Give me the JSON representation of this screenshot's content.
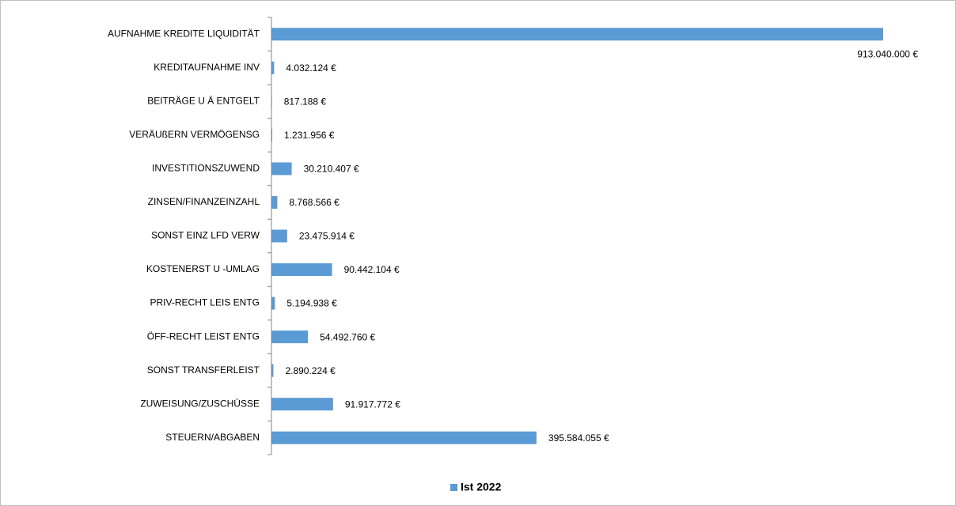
{
  "chart_data": {
    "type": "bar",
    "orientation": "horizontal",
    "categories": [
      "AUFNAHME KREDITE LIQUIDITÄT",
      "KREDITAUFNAHME INV",
      "BEITRÄGE U Ä ENTGELT",
      "VERÄUßERN VERMÖGENSG",
      "INVESTITIONSZUWEND",
      "ZINSEN/FINANZEINZAHL",
      "SONST EINZ LFD VERW",
      "KOSTENERST U -UMLAG",
      "PRIV-RECHT LEIS ENTG",
      "ÖFF-RECHT LEIST ENTG",
      "SONST TRANSFERLEIST",
      "ZUWEISUNG/ZUSCHÜSSE",
      "STEUERN/ABGABEN"
    ],
    "series": [
      {
        "name": "Ist 2022",
        "color": "#5b9bd5",
        "values": [
          913040000,
          4032124,
          817188,
          1231956,
          30210407,
          8768566,
          23475914,
          90442104,
          5194938,
          54492760,
          2890224,
          91917772,
          395584055
        ],
        "value_labels": [
          "913.040.000 €",
          "4.032.124 €",
          "817.188 €",
          "1.231.956 €",
          "30.210.407 €",
          "8.768.566 €",
          "23.475.914 €",
          "90.442.104 €",
          "5.194.938 €",
          "54.492.760 €",
          "2.890.224 €",
          "91.917.772 €",
          "395.584.055 €"
        ]
      }
    ],
    "legend": "bottom"
  }
}
